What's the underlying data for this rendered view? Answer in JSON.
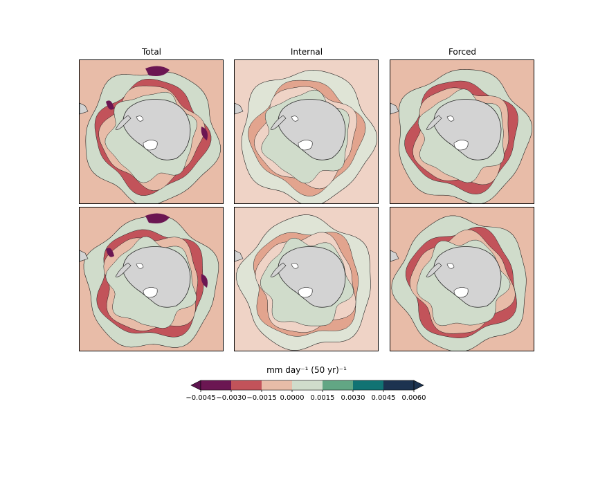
{
  "columns": [
    {
      "title": "Total"
    },
    {
      "title": "Internal"
    },
    {
      "title": "Forced"
    }
  ],
  "colorbar": {
    "label": "mm day⁻¹ (50 yr)⁻¹",
    "ticks": [
      "−0.0045",
      "−0.0030",
      "−0.0015",
      "0.0000",
      "0.0015",
      "0.0030",
      "0.0045",
      "0.0060"
    ],
    "colors": [
      "#5e1450",
      "#6b1652",
      "#c2535a",
      "#e8bca8",
      "#d0dccb",
      "#62a684",
      "#117373",
      "#1c3350",
      "#1c3350"
    ],
    "extend": "both"
  },
  "map_style": {
    "land_color": "#d3d3d3",
    "ice_shelf_color": "#ffffff",
    "coastline_color": "#222222"
  },
  "panels": [
    {
      "row": 1,
      "column": "Total",
      "background_color": "#e8bca8",
      "pattern": "strong"
    },
    {
      "row": 1,
      "column": "Internal",
      "background_color": "#efd3c6",
      "pattern": "noisy"
    },
    {
      "row": 1,
      "column": "Forced",
      "background_color": "#e8bca8",
      "pattern": "smooth"
    },
    {
      "row": 2,
      "column": "Total",
      "background_color": "#e8bca8",
      "pattern": "strong"
    },
    {
      "row": 2,
      "column": "Internal",
      "background_color": "#efd3c6",
      "pattern": "noisy"
    },
    {
      "row": 2,
      "column": "Forced",
      "background_color": "#e8bca8",
      "pattern": "smooth"
    }
  ]
}
